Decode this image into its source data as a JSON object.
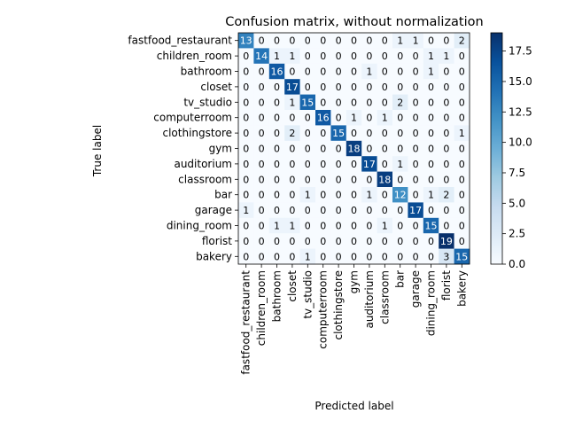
{
  "chart_data": {
    "type": "heatmap",
    "title": "Confusion matrix, without normalization",
    "xlabel": "Predicted label",
    "ylabel": "True label",
    "labels": [
      "fastfood_restaurant",
      "children_room",
      "bathroom",
      "closet",
      "tv_studio",
      "computerroom",
      "clothingstore",
      "gym",
      "auditorium",
      "classroom",
      "bar",
      "garage",
      "dining_room",
      "florist",
      "bakery"
    ],
    "matrix": [
      [
        13,
        0,
        0,
        0,
        0,
        0,
        0,
        0,
        0,
        0,
        1,
        1,
        0,
        0,
        2
      ],
      [
        0,
        14,
        1,
        1,
        0,
        0,
        0,
        0,
        0,
        0,
        0,
        0,
        1,
        1,
        0
      ],
      [
        0,
        0,
        16,
        0,
        0,
        0,
        0,
        0,
        1,
        0,
        0,
        0,
        1,
        0,
        0
      ],
      [
        0,
        0,
        0,
        17,
        0,
        0,
        0,
        0,
        0,
        0,
        0,
        0,
        0,
        0,
        0
      ],
      [
        0,
        0,
        0,
        1,
        15,
        0,
        0,
        0,
        0,
        0,
        2,
        0,
        0,
        0,
        0
      ],
      [
        0,
        0,
        0,
        0,
        0,
        16,
        0,
        1,
        0,
        1,
        0,
        0,
        0,
        0,
        0
      ],
      [
        0,
        0,
        0,
        2,
        0,
        0,
        15,
        0,
        0,
        0,
        0,
        0,
        0,
        0,
        1
      ],
      [
        0,
        0,
        0,
        0,
        0,
        0,
        0,
        18,
        0,
        0,
        0,
        0,
        0,
        0,
        0
      ],
      [
        0,
        0,
        0,
        0,
        0,
        0,
        0,
        0,
        17,
        0,
        1,
        0,
        0,
        0,
        0
      ],
      [
        0,
        0,
        0,
        0,
        0,
        0,
        0,
        0,
        0,
        18,
        0,
        0,
        0,
        0,
        0
      ],
      [
        0,
        0,
        0,
        0,
        1,
        0,
        0,
        0,
        1,
        0,
        12,
        0,
        1,
        2,
        0
      ],
      [
        1,
        0,
        0,
        0,
        0,
        0,
        0,
        0,
        0,
        0,
        0,
        17,
        0,
        0,
        0
      ],
      [
        0,
        0,
        1,
        1,
        0,
        0,
        0,
        0,
        0,
        1,
        0,
        0,
        15,
        0,
        0
      ],
      [
        0,
        0,
        0,
        0,
        0,
        0,
        0,
        0,
        0,
        0,
        0,
        0,
        0,
        19,
        0
      ],
      [
        0,
        0,
        0,
        0,
        1,
        0,
        0,
        0,
        0,
        0,
        0,
        0,
        0,
        3,
        15
      ]
    ],
    "colorbar": {
      "min": 0,
      "max": 19,
      "ticks": [
        "0.0",
        "2.5",
        "5.0",
        "7.5",
        "10.0",
        "12.5",
        "15.0",
        "17.5"
      ],
      "colormap": "Blues",
      "low_color": "#f7fbff",
      "high_color": "#08306b"
    },
    "text_threshold": 9.5,
    "text_colors": {
      "light": "#ffffff",
      "dark": "#000000"
    }
  }
}
